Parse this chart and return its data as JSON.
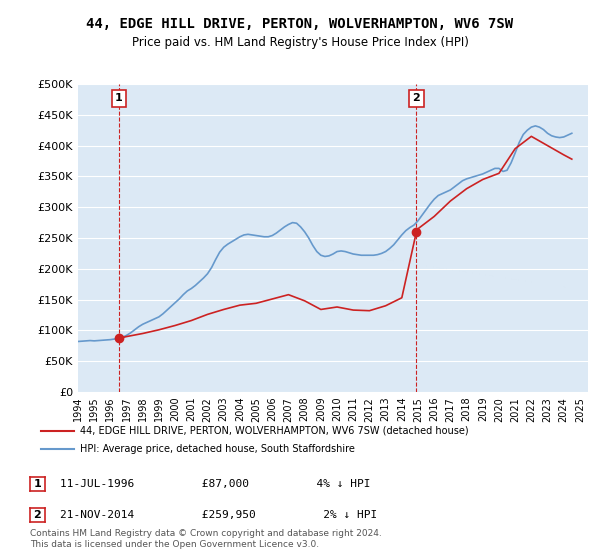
{
  "title": "44, EDGE HILL DRIVE, PERTON, WOLVERHAMPTON, WV6 7SW",
  "subtitle": "Price paid vs. HM Land Registry's House Price Index (HPI)",
  "background_color": "#dce9f5",
  "plot_bg_color": "#dce9f5",
  "ylabel_values": [
    "£0",
    "£50K",
    "£100K",
    "£150K",
    "£200K",
    "£250K",
    "£300K",
    "£350K",
    "£400K",
    "£450K",
    "£500K"
  ],
  "ylim": [
    0,
    500000
  ],
  "xlim_start": 1994.0,
  "xlim_end": 2025.5,
  "purchase1": {
    "date_num": 1996.53,
    "price": 87000,
    "label": "1",
    "date_str": "11-JUL-1996",
    "pct": "4% ↓ HPI"
  },
  "purchase2": {
    "date_num": 2014.9,
    "price": 259950,
    "label": "2",
    "date_str": "21-NOV-2014",
    "pct": "2% ↓ HPI"
  },
  "hpi_line_color": "#6699cc",
  "price_line_color": "#cc2222",
  "marker_color": "#cc2222",
  "vline_color": "#cc2222",
  "legend_label1": "44, EDGE HILL DRIVE, PERTON, WOLVERHAMPTON, WV6 7SW (detached house)",
  "legend_label2": "HPI: Average price, detached house, South Staffordshire",
  "footer": "Contains HM Land Registry data © Crown copyright and database right 2024.\nThis data is licensed under the Open Government Licence v3.0.",
  "annotation1_label": "1",
  "annotation2_label": "2",
  "hpi_data_x": [
    1994.0,
    1994.25,
    1994.5,
    1994.75,
    1995.0,
    1995.25,
    1995.5,
    1995.75,
    1996.0,
    1996.25,
    1996.5,
    1996.75,
    1997.0,
    1997.25,
    1997.5,
    1997.75,
    1998.0,
    1998.25,
    1998.5,
    1998.75,
    1999.0,
    1999.25,
    1999.5,
    1999.75,
    2000.0,
    2000.25,
    2000.5,
    2000.75,
    2001.0,
    2001.25,
    2001.5,
    2001.75,
    2002.0,
    2002.25,
    2002.5,
    2002.75,
    2003.0,
    2003.25,
    2003.5,
    2003.75,
    2004.0,
    2004.25,
    2004.5,
    2004.75,
    2005.0,
    2005.25,
    2005.5,
    2005.75,
    2006.0,
    2006.25,
    2006.5,
    2006.75,
    2007.0,
    2007.25,
    2007.5,
    2007.75,
    2008.0,
    2008.25,
    2008.5,
    2008.75,
    2009.0,
    2009.25,
    2009.5,
    2009.75,
    2010.0,
    2010.25,
    2010.5,
    2010.75,
    2011.0,
    2011.25,
    2011.5,
    2011.75,
    2012.0,
    2012.25,
    2012.5,
    2012.75,
    2013.0,
    2013.25,
    2013.5,
    2013.75,
    2014.0,
    2014.25,
    2014.5,
    2014.75,
    2015.0,
    2015.25,
    2015.5,
    2015.75,
    2016.0,
    2016.25,
    2016.5,
    2016.75,
    2017.0,
    2017.25,
    2017.5,
    2017.75,
    2018.0,
    2018.25,
    2018.5,
    2018.75,
    2019.0,
    2019.25,
    2019.5,
    2019.75,
    2020.0,
    2020.25,
    2020.5,
    2020.75,
    2021.0,
    2021.25,
    2021.5,
    2021.75,
    2022.0,
    2022.25,
    2022.5,
    2022.75,
    2023.0,
    2023.25,
    2023.5,
    2023.75,
    2024.0,
    2024.25,
    2024.5
  ],
  "hpi_data_y": [
    82000,
    82500,
    83000,
    83500,
    83000,
    83500,
    84000,
    84500,
    85000,
    86000,
    87500,
    89000,
    92000,
    96000,
    101000,
    106000,
    110000,
    113000,
    116000,
    119000,
    122000,
    127000,
    133000,
    139000,
    145000,
    151000,
    158000,
    164000,
    168000,
    173000,
    179000,
    185000,
    192000,
    202000,
    215000,
    227000,
    235000,
    240000,
    244000,
    248000,
    252000,
    255000,
    256000,
    255000,
    254000,
    253000,
    252000,
    252000,
    254000,
    258000,
    263000,
    268000,
    272000,
    275000,
    274000,
    268000,
    260000,
    250000,
    238000,
    228000,
    222000,
    220000,
    221000,
    224000,
    228000,
    229000,
    228000,
    226000,
    224000,
    223000,
    222000,
    222000,
    222000,
    222000,
    223000,
    225000,
    228000,
    233000,
    239000,
    247000,
    255000,
    262000,
    267000,
    271000,
    278000,
    287000,
    296000,
    305000,
    313000,
    319000,
    322000,
    325000,
    328000,
    333000,
    338000,
    343000,
    346000,
    348000,
    350000,
    352000,
    354000,
    357000,
    360000,
    363000,
    363000,
    358000,
    360000,
    372000,
    388000,
    405000,
    418000,
    425000,
    430000,
    432000,
    430000,
    426000,
    420000,
    416000,
    414000,
    413000,
    414000,
    417000,
    420000
  ],
  "price_data_x": [
    1996.53,
    1997.0,
    1998.0,
    1999.0,
    2000.0,
    2001.0,
    2002.0,
    2003.0,
    2004.0,
    2005.0,
    2006.0,
    2007.0,
    2008.0,
    2009.0,
    2010.0,
    2011.0,
    2012.0,
    2013.0,
    2014.0,
    2014.9,
    2015.0,
    2016.0,
    2017.0,
    2018.0,
    2019.0,
    2020.0,
    2021.0,
    2022.0,
    2023.0,
    2024.0,
    2024.5
  ],
  "price_data_y": [
    87000,
    90000,
    95000,
    101000,
    108000,
    116000,
    126000,
    134000,
    141000,
    144000,
    151000,
    158000,
    148000,
    134000,
    138000,
    133000,
    132000,
    140000,
    153000,
    259950,
    265000,
    285000,
    310000,
    330000,
    345000,
    355000,
    395000,
    415000,
    400000,
    385000,
    378000
  ],
  "xtick_years": [
    1994,
    1995,
    1996,
    1997,
    1998,
    1999,
    2000,
    2001,
    2002,
    2003,
    2004,
    2005,
    2006,
    2007,
    2008,
    2009,
    2010,
    2011,
    2012,
    2013,
    2014,
    2015,
    2016,
    2017,
    2018,
    2019,
    2020,
    2021,
    2022,
    2023,
    2024,
    2025
  ]
}
